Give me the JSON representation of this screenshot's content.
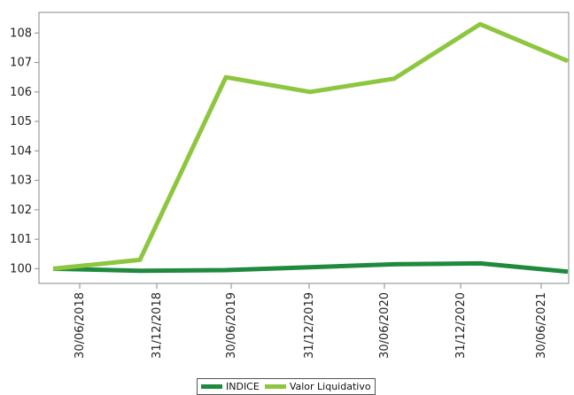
{
  "chart_data": {
    "type": "line",
    "title": "",
    "xlabel": "",
    "ylabel": "",
    "categories": [
      "30/06/2018",
      "31/12/2018",
      "30/06/2019",
      "31/12/2019",
      "30/06/2020",
      "31/12/2020",
      "30/06/2021"
    ],
    "x_ticks": [
      "30/06/2018",
      "31/12/2018",
      "30/06/2019",
      "31/12/2019",
      "30/06/2020",
      "31/12/2020",
      "30/06/2021"
    ],
    "y_ticks": [
      100,
      101,
      102,
      103,
      104,
      105,
      106,
      107,
      108
    ],
    "ylim": [
      99.5,
      108.7
    ],
    "grid": false,
    "legend_position": "bottom",
    "series": [
      {
        "name": "INDICE",
        "color": "#1f8a3e",
        "values": [
          100.0,
          99.93,
          99.95,
          100.05,
          100.15,
          100.18,
          99.9
        ]
      },
      {
        "name": "Valor Liquidativo",
        "color": "#8dc63f",
        "values": [
          100.0,
          100.3,
          106.5,
          106.0,
          106.45,
          108.3,
          107.05
        ]
      }
    ]
  }
}
